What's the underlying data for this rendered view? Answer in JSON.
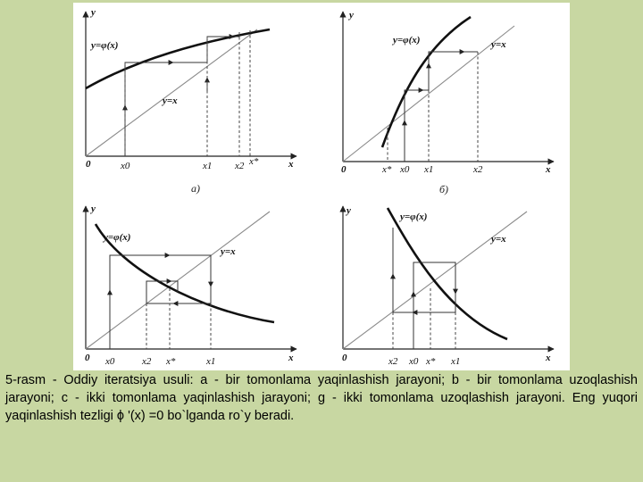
{
  "panels": [
    {
      "id": "a",
      "axis_y": "y",
      "axis_x": "x",
      "origin": "0",
      "phi_label": "y=φ(x)",
      "diag_label": "y=x",
      "ticks": [
        "x0",
        "x1",
        "x2",
        "x*"
      ],
      "sub": "a)"
    },
    {
      "id": "b",
      "axis_y": "y",
      "axis_x": "x",
      "origin": "0",
      "phi_label": "y=φ(x)",
      "diag_label": "y=x",
      "ticks": [
        "x*",
        "x0",
        "x1",
        "x2"
      ],
      "sub": "б)"
    },
    {
      "id": "c",
      "axis_y": "y",
      "axis_x": "x",
      "origin": "0",
      "phi_label": "y=φ(x)",
      "diag_label": "y=x",
      "ticks": [
        "x0",
        "x2",
        "x*",
        "x1"
      ]
    },
    {
      "id": "d",
      "axis_y": "y",
      "axis_x": "x",
      "origin": "0",
      "phi_label": "y=φ(x)",
      "diag_label": "y=x",
      "ticks": [
        "x2",
        "x0",
        "x*",
        "x1"
      ]
    }
  ],
  "caption": "5-rasm - Oddiy iteratsiya usuli: a - bir tomonlama yaqinlashish jarayoni; b - bir tomonlama uzoqlashish jarayoni; c - ikki tomonlama yaqinlashish jarayoni; g - ikki tomonlama uzoqlashish  jarayoni. Eng yuqori yaqinlashish tezligi  ϕ '(x) =0  bo`lganda ro`y beradi."
}
